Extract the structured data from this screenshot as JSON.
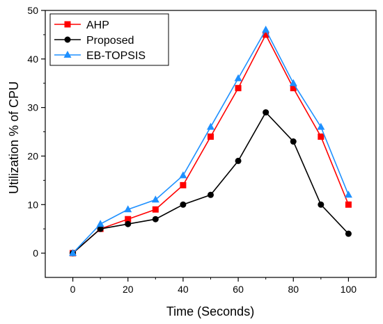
{
  "chart_data": {
    "type": "line",
    "xlabel": "Time (Seconds)",
    "ylabel": "Utilization % of CPU",
    "xlim": [
      -10,
      110
    ],
    "ylim": [
      -5,
      50
    ],
    "x_ticks": [
      0,
      20,
      40,
      60,
      80,
      100
    ],
    "y_ticks": [
      0,
      10,
      20,
      30,
      40,
      50
    ],
    "grid": false,
    "legend_position": "top-left",
    "x": [
      0,
      10,
      20,
      30,
      40,
      50,
      60,
      70,
      80,
      90,
      100
    ],
    "series": [
      {
        "name": "AHP",
        "color": "#ff0000",
        "marker": "square",
        "values": [
          0,
          5,
          7,
          9,
          14,
          24,
          34,
          45,
          34,
          24,
          10
        ]
      },
      {
        "name": "Proposed",
        "color": "#000000",
        "marker": "circle",
        "values": [
          0,
          5,
          6,
          7,
          10,
          12,
          19,
          29,
          23,
          10,
          4
        ]
      },
      {
        "name": "EB-TOPSIS",
        "color": "#1e90ff",
        "marker": "triangle",
        "values": [
          0,
          6,
          9,
          11,
          16,
          26,
          36,
          46,
          35,
          26,
          12
        ]
      }
    ]
  }
}
